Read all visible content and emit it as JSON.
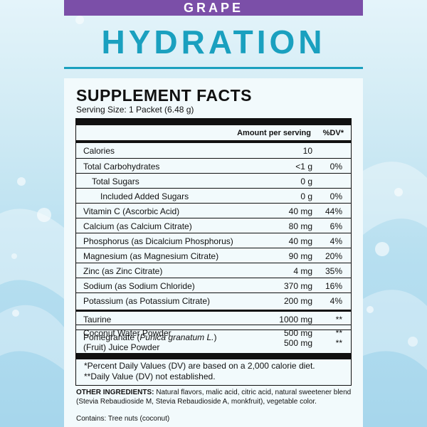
{
  "flavor": "GRAPE",
  "title": "HYDRATION",
  "facts": {
    "heading": "SUPPLEMENT FACTS",
    "serving": "Serving Size: 1 Packet (6.48 g)",
    "col_amount": "Amount per serving",
    "col_dv": "%DV*",
    "rows": [
      {
        "name": "Calories",
        "amount": "10",
        "dv": ""
      },
      {
        "name": "Total Carbohydrates",
        "amount": "<1 g",
        "dv": "0%"
      },
      {
        "name": "Total Sugars",
        "amount": "0 g",
        "dv": ""
      },
      {
        "name": "Included Added Sugars",
        "amount": "0 g",
        "dv": "0%"
      },
      {
        "name": "Vitamin C (Ascorbic Acid)",
        "amount": "40 mg",
        "dv": "44%"
      },
      {
        "name": "Calcium (as Calcium Citrate)",
        "amount": "80 mg",
        "dv": "6%"
      },
      {
        "name": "Phosphorus (as Dicalcium Phosphorus)",
        "amount": "40 mg",
        "dv": "4%"
      },
      {
        "name": "Magnesium (as Magnesium Citrate)",
        "amount": "90 mg",
        "dv": "20%"
      },
      {
        "name": "Zinc (as Zinc Citrate)",
        "amount": "4 mg",
        "dv": "35%"
      },
      {
        "name": "Sodium (as Sodium Chloride)",
        "amount": "370 mg",
        "dv": "16%"
      },
      {
        "name": "Potassium (as Potassium Citrate)",
        "amount": "200 mg",
        "dv": "4%"
      },
      {
        "name": "Taurine",
        "amount": "1000 mg",
        "dv": "**"
      },
      {
        "name": "Coconut Water Powder",
        "amount": "500 mg",
        "dv": "**"
      }
    ],
    "pomegranate": {
      "prefix": "Pomegranate (",
      "latin": "Punica granatum L.",
      "suffix": ")",
      "line2": "(Fruit) Juice Powder",
      "amount": "500 mg",
      "dv": "**"
    },
    "footnote1": "*Percent Daily Values (DV) are based on a 2,000 calorie diet.",
    "footnote2": "**Daily Value (DV) not established."
  },
  "other_label": "OTHER INGREDIENTS:",
  "other_text": " Natural flavors, malic acid, citric acid, natural sweetener blend (Stevia Rebaudioside M, Stevia Rebaudioside A, monkfruit), vegetable color.",
  "contains": "Contains: Tree nuts (coconut)",
  "colors": {
    "accent": "#1aa0bf",
    "banner": "#7b4fa8"
  }
}
